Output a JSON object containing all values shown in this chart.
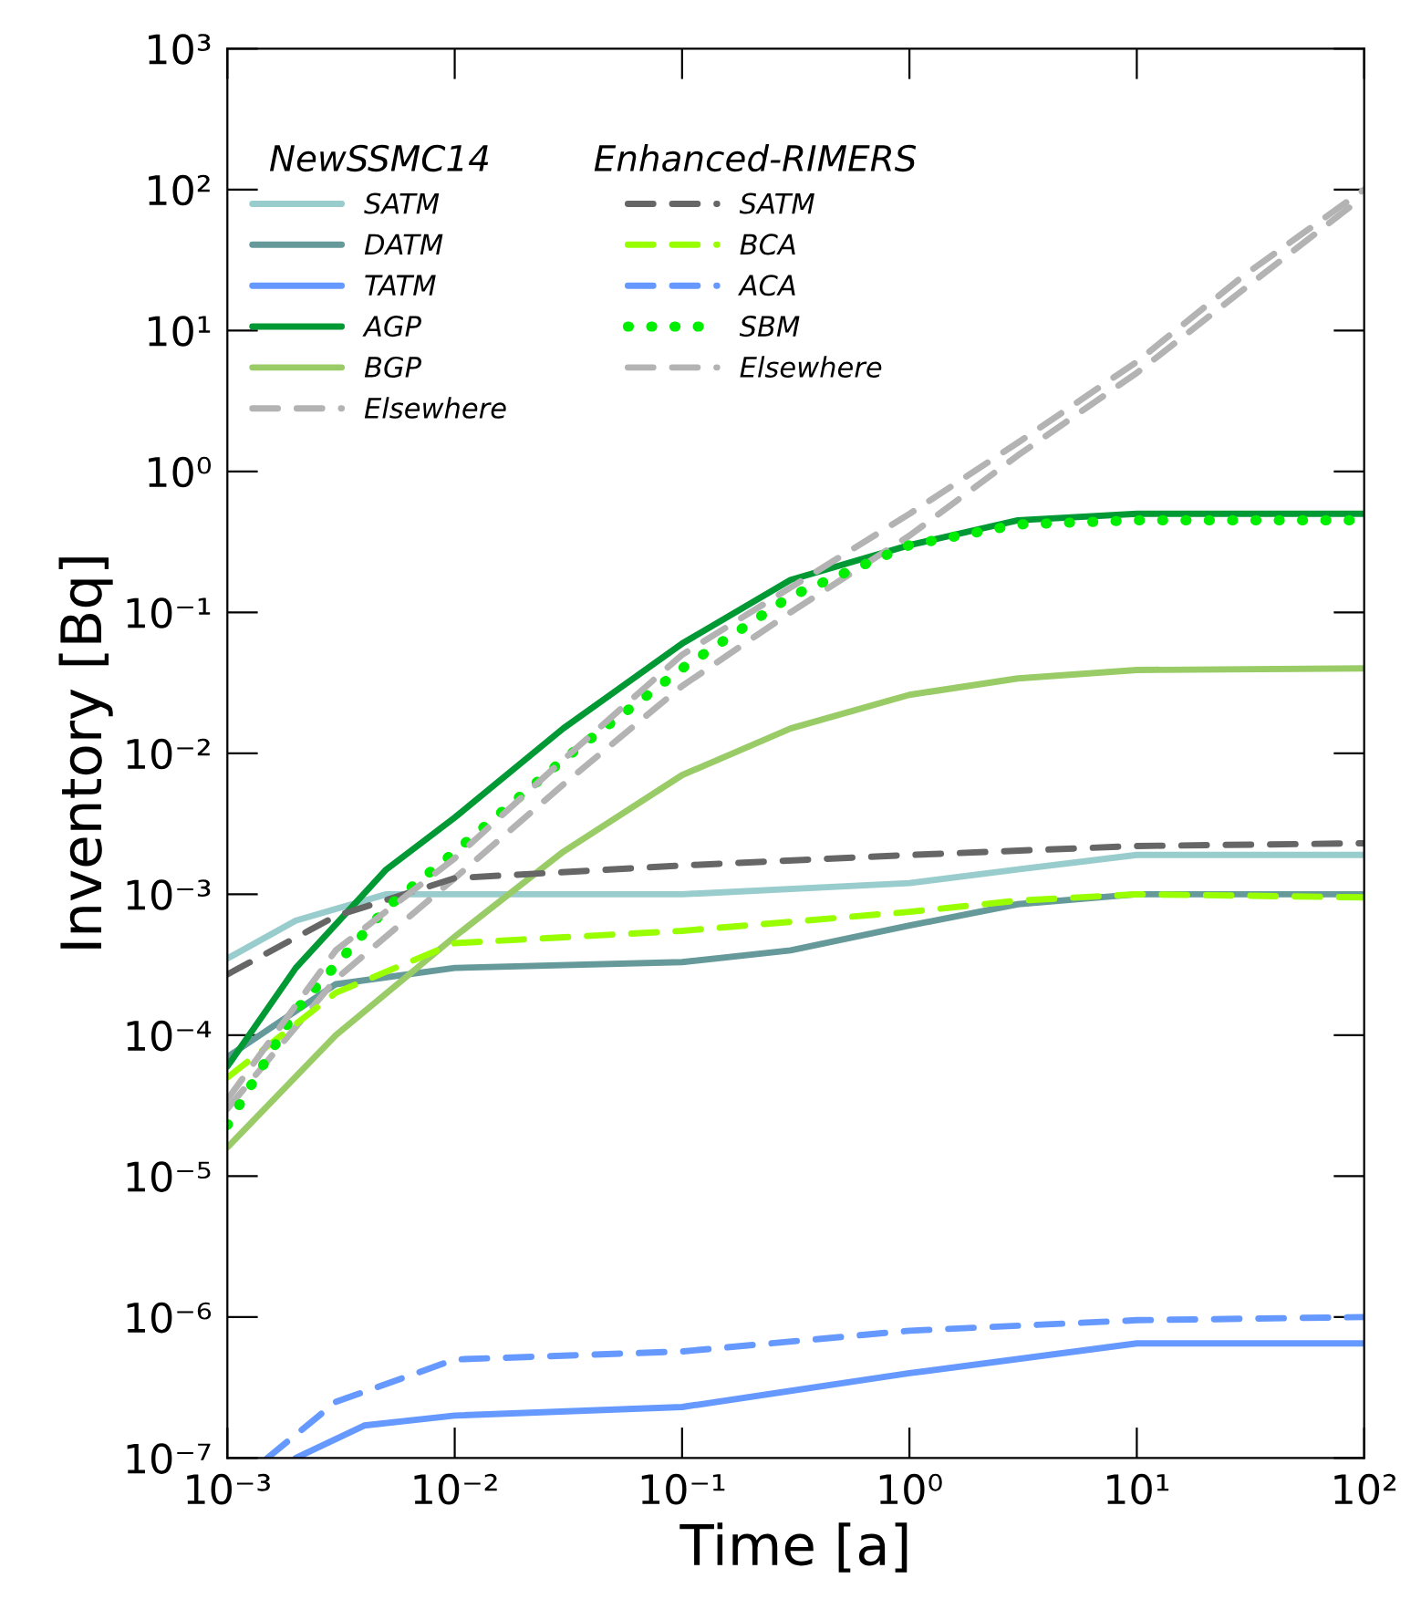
{
  "chart_data": {
    "type": "line",
    "xlabel": "Time [a]",
    "ylabel": "Inventory [Bq]",
    "log": "xy",
    "grid": false,
    "legend": "top left",
    "legend_title": [
      "NewSSMC14",
      "Enhanced-RIMERS"
    ],
    "xlim": [
      0.001,
      100
    ],
    "ylim": [
      1e-07,
      1000
    ],
    "xticks": [
      {
        "value": 0.001,
        "label": "10⁻³"
      },
      {
        "value": 0.01,
        "label": "10⁻²"
      },
      {
        "value": 0.1,
        "label": "10⁻¹"
      },
      {
        "value": 1,
        "label": "10⁰"
      },
      {
        "value": 10,
        "label": "10¹"
      },
      {
        "value": 100,
        "label": "10²"
      }
    ],
    "yticks": [
      {
        "value": 1e-07,
        "label": "10⁻⁷"
      },
      {
        "value": 1e-06,
        "label": "10⁻⁶"
      },
      {
        "value": 1e-05,
        "label": "10⁻⁵"
      },
      {
        "value": 0.0001,
        "label": "10⁻⁴"
      },
      {
        "value": 0.001,
        "label": "10⁻³"
      },
      {
        "value": 0.01,
        "label": "10⁻²"
      },
      {
        "value": 0.1,
        "label": "10⁻¹"
      },
      {
        "value": 1,
        "label": "10⁰"
      },
      {
        "value": 10,
        "label": "10¹"
      },
      {
        "value": 100,
        "label": "10²"
      },
      {
        "value": 1000,
        "label": "10³"
      }
    ],
    "series": [
      {
        "name": "SATM",
        "color": "#99cccc",
        "line_style": "solid",
        "x": [
          0.001,
          0.002,
          0.005,
          0.01,
          0.1,
          1,
          3,
          10,
          100
        ],
        "values": [
          0.00035,
          0.00065,
          0.001,
          0.001,
          0.001,
          0.0012,
          0.0015,
          0.0019,
          0.0019
        ]
      },
      {
        "name": "DATM",
        "color": "#669999",
        "line_style": "solid",
        "x": [
          0.001,
          0.003,
          0.01,
          0.1,
          0.3,
          1,
          3,
          10,
          100
        ],
        "values": [
          7e-05,
          0.00023,
          0.0003,
          0.00033,
          0.0004,
          0.0006,
          0.00085,
          0.001,
          0.001
        ]
      },
      {
        "name": "TATM",
        "color": "#6699ff",
        "line_style": "solid",
        "x": [
          0.002,
          0.004,
          0.01,
          0.1,
          1,
          10,
          100
        ],
        "values": [
          1e-07,
          1.7e-07,
          2e-07,
          2.3e-07,
          4e-07,
          6.5e-07,
          6.5e-07
        ]
      },
      {
        "name": "AGP",
        "color": "#009933",
        "line_style": "solid",
        "x": [
          0.001,
          0.002,
          0.005,
          0.01,
          0.03,
          0.1,
          0.3,
          1,
          3,
          10,
          100
        ],
        "values": [
          6e-05,
          0.0003,
          0.0015,
          0.0035,
          0.015,
          0.06,
          0.17,
          0.3,
          0.45,
          0.5,
          0.5
        ]
      },
      {
        "name": "BGP",
        "color": "#99cc66",
        "line_style": "solid",
        "x": [
          0.001,
          0.003,
          0.01,
          0.03,
          0.1,
          0.3,
          1,
          3,
          10,
          100
        ],
        "values": [
          1.6e-05,
          0.0001,
          0.0005,
          0.002,
          0.007,
          0.015,
          0.026,
          0.034,
          0.039,
          0.04
        ]
      },
      {
        "name": "Elsewhere",
        "color": "#b3b3b3",
        "line_style": "dashed",
        "x": [
          0.001,
          0.003,
          0.01,
          0.03,
          0.1,
          0.3,
          1,
          3,
          10,
          30,
          100
        ],
        "values": [
          3e-05,
          0.00025,
          0.0013,
          0.006,
          0.03,
          0.1,
          0.35,
          1.3,
          5,
          20,
          90
        ]
      },
      {
        "name": "SATM",
        "color": "#666666",
        "line_style": "dashed",
        "x": [
          0.001,
          0.003,
          0.01,
          0.1,
          1,
          10,
          100
        ],
        "values": [
          0.00027,
          0.0007,
          0.0013,
          0.0016,
          0.0019,
          0.0022,
          0.0023
        ]
      },
      {
        "name": "BCA",
        "color": "#99ff00",
        "line_style": "dashed",
        "x": [
          0.001,
          0.003,
          0.01,
          0.1,
          1,
          3,
          10,
          100
        ],
        "values": [
          5e-05,
          0.0002,
          0.00045,
          0.00055,
          0.00075,
          0.0009,
          0.001,
          0.00095
        ]
      },
      {
        "name": "ACA",
        "color": "#6699ff",
        "line_style": "dashed",
        "x": [
          0.0015,
          0.003,
          0.01,
          0.1,
          1,
          10,
          100
        ],
        "values": [
          1e-07,
          2.5e-07,
          5e-07,
          5.7e-07,
          8e-07,
          9.5e-07,
          1e-06
        ]
      },
      {
        "name": "SBM",
        "color": "#00ee00",
        "line_style": "dotted",
        "x": [
          0.001,
          0.002,
          0.005,
          0.01,
          0.03,
          0.1,
          0.3,
          1,
          3,
          10,
          100
        ],
        "values": [
          2.3e-05,
          0.00015,
          0.0008,
          0.002,
          0.009,
          0.04,
          0.13,
          0.3,
          0.42,
          0.45,
          0.45
        ]
      },
      {
        "name": "Elsewhere",
        "color": "#b3b3b3",
        "line_style": "dashed",
        "x": [
          0.001,
          0.003,
          0.01,
          0.03,
          0.1,
          0.3,
          1,
          3,
          10,
          30,
          100
        ],
        "values": [
          3.5e-05,
          0.0004,
          0.0018,
          0.009,
          0.05,
          0.15,
          0.5,
          1.6,
          6,
          25,
          100
        ]
      }
    ]
  }
}
